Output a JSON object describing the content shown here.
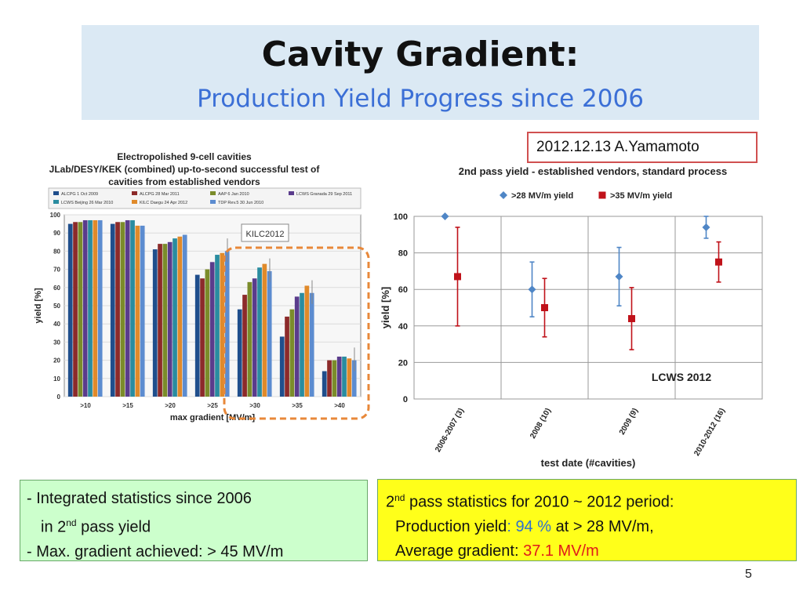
{
  "slide": {
    "title": "Cavity Gradient:",
    "subtitle": "Production Yield Progress since 2006",
    "date_author": "2012.12.13 A.Yamamoto",
    "page_number": "5"
  },
  "left_box": {
    "line1": "- Integrated statistics since 2006",
    "line2_pre": "in 2",
    "line2_sup": "nd",
    "line2_post": " pass yield",
    "line3": "- Max. gradient achieved: > 45 MV/m"
  },
  "right_box": {
    "line1_pre": "2",
    "line1_sup": "nd",
    "line1_post": " pass statistics for  2010 ~ 2012 period:",
    "line2_label": "Production yield",
    "line2_colon": ":",
    "line2_value": "94 %",
    "line2_post": " at > 28 MV/m,",
    "line3_label": "Average gradient: ",
    "line3_value": "37.1 MV/m"
  },
  "colors": {
    "title_box_bg": "#dbe9f4",
    "subtitle": "#3b6fd6",
    "left_box_bg": "#ccffcc",
    "right_box_bg": "#ffff1a",
    "blue_value": "#2e6fd0",
    "red_value": "#e01a1a",
    "series_28": "#4f86c6",
    "series_35": "#c0121a",
    "highlight": "#e8883a"
  },
  "chart_data": [
    {
      "type": "bar",
      "title_lines": [
        "Electropolished 9-cell cavities",
        "JLab/DESY/KEK (combined) up-to-second successful test of",
        "cavities from established vendors"
      ],
      "xlabel": "max gradient [MV/m]",
      "ylabel": "yield [%]",
      "categories": [
        ">10",
        ">15",
        ">20",
        ">25",
        ">30",
        ">35",
        ">40"
      ],
      "ylim": [
        0,
        100
      ],
      "yticks": [
        0,
        10,
        20,
        30,
        40,
        50,
        60,
        70,
        80,
        90,
        100
      ],
      "annotation": "KILC2012",
      "series": [
        {
          "name": "ALCPG 1 Oct 2009",
          "color": "#1f4e8c",
          "values": [
            95,
            95,
            81,
            67,
            48,
            33,
            14
          ]
        },
        {
          "name": "ALCPG 28 Mar 2011",
          "color": "#8c2a2a",
          "values": [
            96,
            96,
            84,
            65,
            56,
            44,
            20
          ]
        },
        {
          "name": "AAP 6 Jan 2010",
          "color": "#7b8c2a",
          "values": [
            96,
            96,
            84,
            70,
            63,
            48,
            20
          ]
        },
        {
          "name": "LCWS Granada 29 Sep 2011",
          "color": "#5a3c8c",
          "values": [
            97,
            97,
            85,
            74,
            65,
            55,
            22
          ]
        },
        {
          "name": "LCWS Beijing 26 Mar 2010",
          "color": "#2a8ca0",
          "values": [
            97,
            97,
            87,
            78,
            71,
            57,
            22
          ]
        },
        {
          "name": "KILC Daegu 24 Apr 2012",
          "color": "#e08a2a",
          "values": [
            97,
            94,
            88,
            79,
            73,
            61,
            21
          ]
        },
        {
          "name": "TDP Rev.5 30 Jun 2010",
          "color": "#5c8cd0",
          "values": [
            97,
            94,
            89,
            80,
            69,
            57,
            20
          ]
        }
      ]
    },
    {
      "type": "scatter",
      "title": "2nd pass yield - established vendors, standard process",
      "xlabel": "test date (#cavities)",
      "ylabel": "yield [%]",
      "categories": [
        "2006-2007 (3)",
        "2008 (10)",
        "2009 (9)",
        "2010-2012 (16)"
      ],
      "ylim": [
        0,
        100
      ],
      "yticks": [
        0,
        20,
        40,
        60,
        80,
        100
      ],
      "annotation": "LCWS 2012",
      "legend_position": "top",
      "series": [
        {
          "name": ">28 MV/m yield",
          "marker": "diamond",
          "color": "#4f86c6",
          "values": [
            100,
            60,
            67,
            94
          ],
          "err_low": [
            100,
            45,
            51,
            88
          ],
          "err_high": [
            100,
            75,
            83,
            100
          ]
        },
        {
          "name": ">35 MV/m yield",
          "marker": "square",
          "color": "#c0121a",
          "values": [
            67,
            50,
            44,
            75
          ],
          "err_low": [
            40,
            34,
            27,
            64
          ],
          "err_high": [
            94,
            66,
            61,
            86
          ]
        }
      ]
    }
  ]
}
